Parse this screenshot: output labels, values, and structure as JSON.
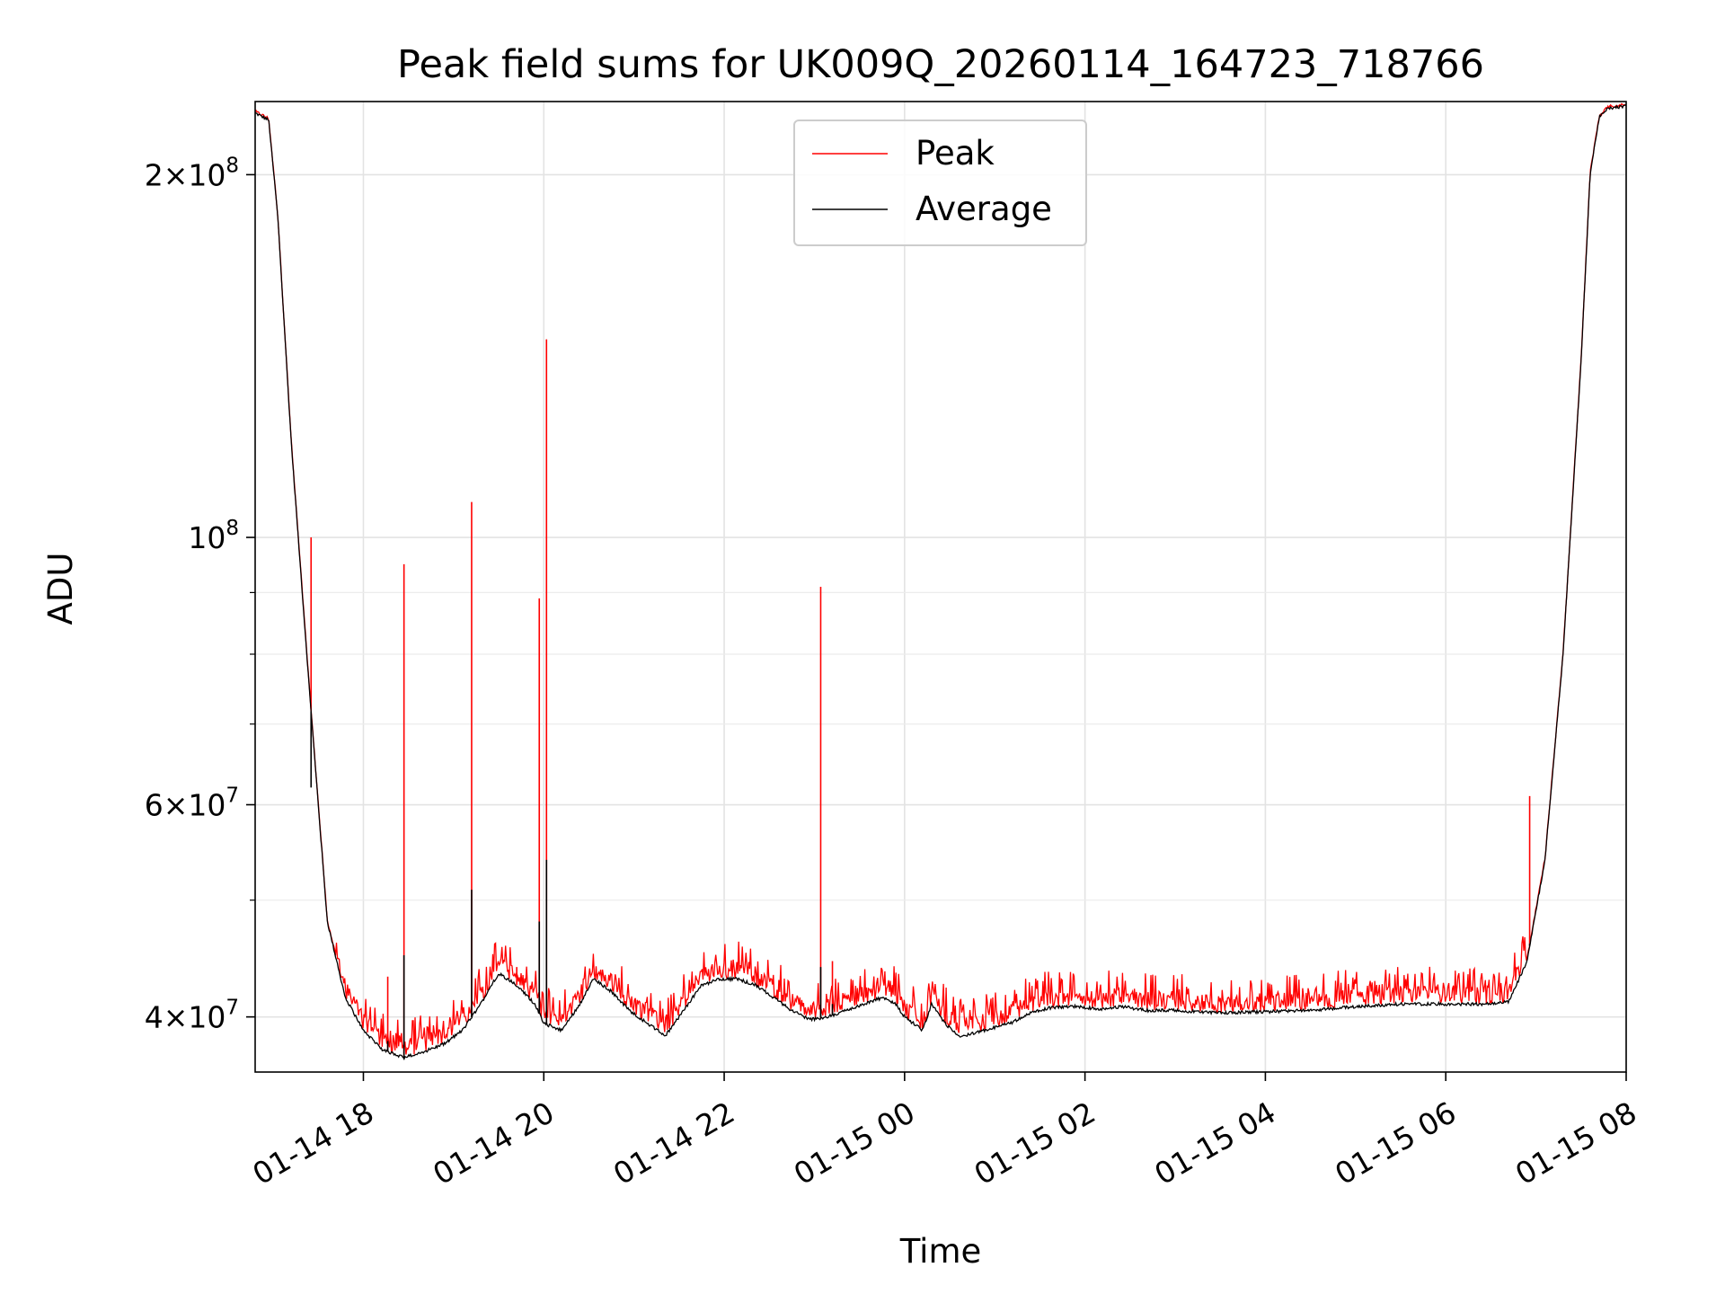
{
  "chart_data": {
    "type": "line",
    "title": "Peak field sums for UK009Q_20260114_164723_718766",
    "xlabel": "Time",
    "ylabel": "ADU",
    "yscale": "log",
    "ylim": [
      36000000,
      230000000
    ],
    "xlim_hours": [
      16.8,
      32.0
    ],
    "grid": true,
    "legend_position": "upper-center",
    "x_ticks": [
      {
        "hour": 18,
        "label": "01-14 18"
      },
      {
        "hour": 20,
        "label": "01-14 20"
      },
      {
        "hour": 22,
        "label": "01-14 22"
      },
      {
        "hour": 24,
        "label": "01-15 00"
      },
      {
        "hour": 26,
        "label": "01-15 02"
      },
      {
        "hour": 28,
        "label": "01-15 04"
      },
      {
        "hour": 30,
        "label": "01-15 06"
      },
      {
        "hour": 32,
        "label": "01-15 08"
      }
    ],
    "y_ticks": [
      {
        "value": 40000000,
        "base": "4×10",
        "exp": "7"
      },
      {
        "value": 60000000,
        "base": "6×10",
        "exp": "7"
      },
      {
        "value": 100000000,
        "base": "10",
        "exp": "8"
      },
      {
        "value": 200000000,
        "base": "2×10",
        "exp": "8"
      }
    ],
    "y_minor_ticks": [
      50000000,
      70000000,
      80000000,
      90000000
    ],
    "series": [
      {
        "name": "Peak",
        "color": "#ff0000"
      },
      {
        "name": "Average",
        "color": "#000000"
      }
    ],
    "average_curve": {
      "hours": [
        16.8,
        16.95,
        17.05,
        17.2,
        17.4,
        17.6,
        17.8,
        18.0,
        18.2,
        18.45,
        18.7,
        18.9,
        19.1,
        19.3,
        19.5,
        19.7,
        19.9,
        20.0,
        20.2,
        20.4,
        20.55,
        20.75,
        20.95,
        21.15,
        21.35,
        21.55,
        21.75,
        21.95,
        22.15,
        22.35,
        22.55,
        22.75,
        22.95,
        23.15,
        23.35,
        23.55,
        23.75,
        23.9,
        24.0,
        24.2,
        24.3,
        24.45,
        24.6,
        24.8,
        25.0,
        25.2,
        25.4,
        25.6,
        25.9,
        26.2,
        26.4,
        26.7,
        27.0,
        27.5,
        28.0,
        28.5,
        29.0,
        29.5,
        30.0,
        30.5,
        30.7,
        30.9,
        31.1,
        31.3,
        31.5,
        31.6,
        31.7,
        31.8,
        32.0
      ],
      "values": [
        225000000,
        222000000,
        185000000,
        120000000,
        75000000,
        48000000,
        41500000,
        39000000,
        37600000,
        37000000,
        37500000,
        38000000,
        39000000,
        41000000,
        43500000,
        42500000,
        41000000,
        39500000,
        39000000,
        41000000,
        43000000,
        42000000,
        40500000,
        39500000,
        38600000,
        40500000,
        42500000,
        43000000,
        43000000,
        42500000,
        41500000,
        40500000,
        39800000,
        40000000,
        40500000,
        41000000,
        41500000,
        41000000,
        40000000,
        39000000,
        41000000,
        39500000,
        38500000,
        38800000,
        39200000,
        39600000,
        40300000,
        40700000,
        40800000,
        40600000,
        40800000,
        40500000,
        40500000,
        40300000,
        40400000,
        40500000,
        40800000,
        41000000,
        41000000,
        41000000,
        41200000,
        44500000,
        54000000,
        80000000,
        140000000,
        200000000,
        223000000,
        227000000,
        228000000
      ]
    },
    "spikes": [
      {
        "hour": 17.42,
        "peak": 100000000,
        "average": 62000000
      },
      {
        "hour": 18.27,
        "peak": 43200000,
        "average": 38200000
      },
      {
        "hour": 18.45,
        "peak": 95000000,
        "average": 45000000
      },
      {
        "hour": 19.2,
        "peak": 107000000,
        "average": 51000000
      },
      {
        "hour": 19.7,
        "peak": 44000000,
        "average": 42500000
      },
      {
        "hour": 19.95,
        "peak": 89000000,
        "average": 48000000
      },
      {
        "hour": 20.03,
        "peak": 146000000,
        "average": 54000000
      },
      {
        "hour": 23.07,
        "peak": 91000000,
        "average": 44000000
      },
      {
        "hour": 23.2,
        "peak": 44500000,
        "average": 41000000
      },
      {
        "hour": 30.93,
        "peak": 61000000,
        "average": 46000000
      }
    ]
  }
}
